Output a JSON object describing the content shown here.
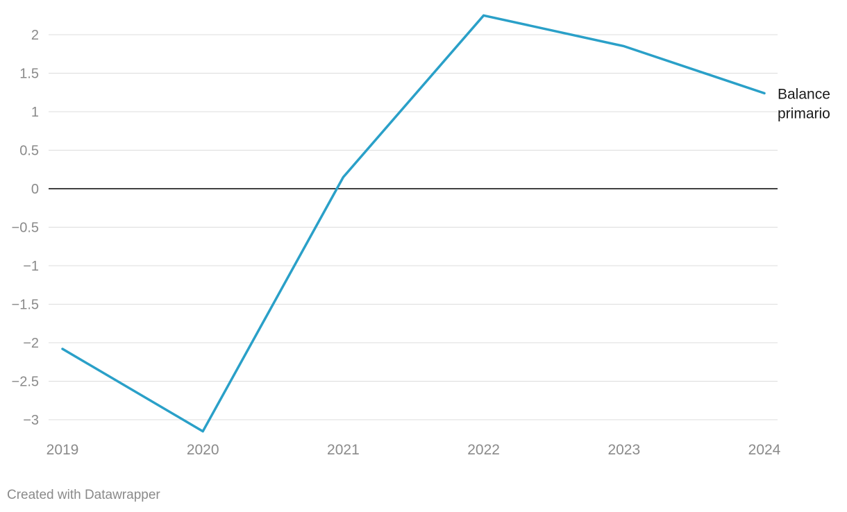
{
  "chart_data": {
    "type": "line",
    "x": [
      "2019",
      "2020",
      "2021",
      "2022",
      "2023",
      "2024"
    ],
    "series": [
      {
        "name": "Balance primario",
        "values": [
          -2.08,
          -3.15,
          0.15,
          2.25,
          1.85,
          1.24
        ],
        "label_lines": [
          "Balance",
          "primario"
        ],
        "color": "#2aa0c8"
      }
    ],
    "ylim": [
      -3.2,
      2.3
    ],
    "yticks": [
      {
        "value": 2,
        "label": "2"
      },
      {
        "value": 1.5,
        "label": "1.5"
      },
      {
        "value": 1,
        "label": "1"
      },
      {
        "value": 0.5,
        "label": "0.5"
      },
      {
        "value": 0,
        "label": "0"
      },
      {
        "value": -0.5,
        "label": "−0.5"
      },
      {
        "value": -1,
        "label": "−1"
      },
      {
        "value": -1.5,
        "label": "−1.5"
      },
      {
        "value": -2,
        "label": "−2"
      },
      {
        "value": -2.5,
        "label": "−2.5"
      },
      {
        "value": -3,
        "label": "−3"
      }
    ],
    "grid": true,
    "zero_line_color": "#000000",
    "grid_color": "#dcdcdc",
    "tick_label_color": "#8a8a8a",
    "title": "",
    "xlabel": "",
    "ylabel": ""
  },
  "footer": {
    "credit": "Created with Datawrapper"
  }
}
